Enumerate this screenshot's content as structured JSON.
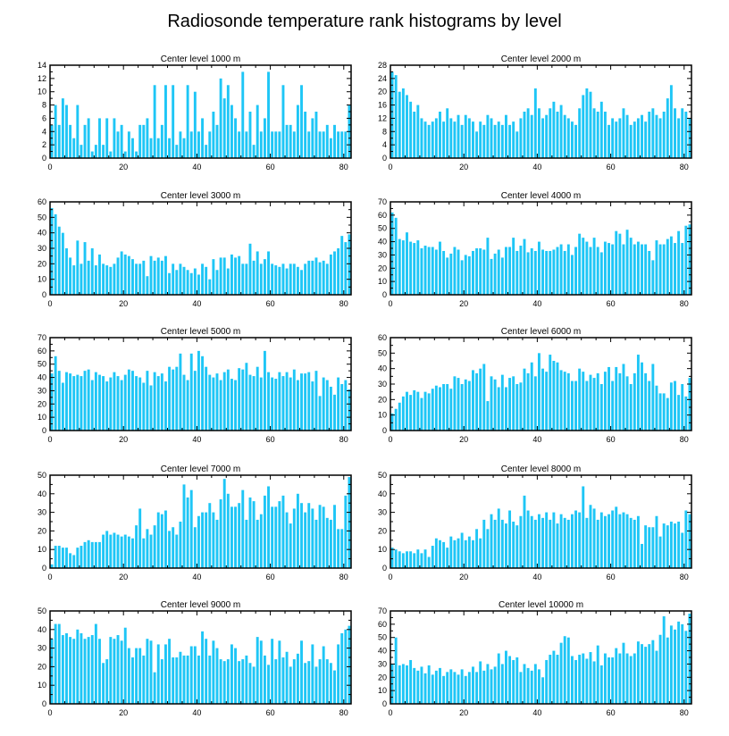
{
  "title": "Radiosonde temperature rank histograms by level",
  "colors": {
    "bar": "#1ec6f6",
    "axis": "#000000"
  },
  "chart_data": [
    {
      "type": "bar",
      "title": "Center level 1000 m",
      "xlim": [
        0,
        82
      ],
      "ylim": [
        0,
        14
      ],
      "xticks": [
        0,
        20,
        40,
        60,
        80
      ],
      "yticks": [
        0,
        2,
        4,
        6,
        8,
        10,
        12,
        14
      ],
      "values": [
        5,
        8,
        5,
        9,
        8,
        5,
        3,
        8,
        2,
        5,
        6,
        1,
        2,
        6,
        2,
        6,
        1,
        6,
        4,
        5,
        1,
        4,
        3,
        1,
        5,
        5,
        6,
        3,
        11,
        3,
        5,
        11,
        3,
        11,
        2,
        4,
        3,
        11,
        4,
        10,
        4,
        6,
        2,
        4,
        7,
        5,
        12,
        9,
        11,
        8,
        6,
        4,
        13,
        4,
        7,
        2,
        8,
        4,
        6,
        13,
        4,
        4,
        4,
        11,
        5,
        5,
        4,
        8,
        11,
        7,
        4,
        6,
        7,
        4,
        4,
        5,
        3,
        5,
        4,
        4,
        4,
        8
      ]
    },
    {
      "type": "bar",
      "title": "Center level 2000 m",
      "xlim": [
        0,
        82
      ],
      "ylim": [
        0,
        28
      ],
      "xticks": [
        0,
        20,
        40,
        60,
        80
      ],
      "yticks": [
        0,
        4,
        8,
        12,
        16,
        20,
        24,
        28
      ],
      "values": [
        26,
        25,
        20,
        21,
        19,
        17,
        14,
        16,
        12,
        11,
        10,
        11,
        12,
        14,
        11,
        15,
        12,
        11,
        13,
        10,
        13,
        12,
        11,
        8,
        11,
        10,
        13,
        12,
        10,
        11,
        10,
        13,
        10,
        11,
        8,
        12,
        14,
        15,
        13,
        21,
        15,
        12,
        13,
        15,
        17,
        14,
        16,
        13,
        12,
        11,
        10,
        15,
        19,
        21,
        20,
        15,
        14,
        17,
        14,
        10,
        12,
        11,
        12,
        15,
        13,
        10,
        11,
        12,
        13,
        11,
        14,
        15,
        13,
        12,
        14,
        18,
        22,
        15,
        12,
        15,
        14,
        12
      ]
    },
    {
      "type": "bar",
      "title": "Center level 3000 m",
      "xlim": [
        0,
        82
      ],
      "ylim": [
        0,
        60
      ],
      "xticks": [
        0,
        20,
        40,
        60,
        80
      ],
      "yticks": [
        0,
        10,
        20,
        30,
        40,
        50,
        60
      ],
      "values": [
        56,
        52,
        44,
        40,
        30,
        24,
        19,
        35,
        20,
        34,
        22,
        30,
        19,
        26,
        20,
        19,
        18,
        20,
        24,
        28,
        26,
        25,
        23,
        20,
        20,
        22,
        12,
        25,
        22,
        24,
        22,
        25,
        14,
        20,
        16,
        20,
        18,
        16,
        14,
        17,
        13,
        20,
        18,
        10,
        23,
        16,
        24,
        24,
        17,
        26,
        24,
        25,
        20,
        20,
        33,
        22,
        28,
        20,
        23,
        28,
        20,
        19,
        18,
        20,
        17,
        20,
        20,
        18,
        16,
        20,
        22,
        22,
        24,
        21,
        22,
        20,
        26,
        28,
        30,
        38,
        34,
        39
      ]
    },
    {
      "type": "bar",
      "title": "Center level 4000 m",
      "xlim": [
        0,
        82
      ],
      "ylim": [
        0,
        70
      ],
      "xticks": [
        0,
        20,
        40,
        60,
        80
      ],
      "yticks": [
        0,
        10,
        20,
        30,
        40,
        50,
        60,
        70
      ],
      "values": [
        62,
        58,
        42,
        41,
        47,
        40,
        39,
        41,
        35,
        37,
        36,
        36,
        34,
        40,
        33,
        28,
        31,
        36,
        34,
        26,
        30,
        29,
        33,
        35,
        35,
        34,
        43,
        27,
        31,
        34,
        28,
        36,
        36,
        43,
        33,
        37,
        42,
        32,
        35,
        33,
        40,
        34,
        33,
        33,
        34,
        36,
        38,
        33,
        38,
        30,
        36,
        46,
        43,
        40,
        36,
        43,
        36,
        32,
        40,
        39,
        38,
        48,
        46,
        38,
        49,
        43,
        38,
        40,
        38,
        38,
        33,
        26,
        41,
        38,
        38,
        42,
        44,
        39,
        48,
        39,
        52,
        53
      ]
    },
    {
      "type": "bar",
      "title": "Center level 5000 m",
      "xlim": [
        0,
        82
      ],
      "ylim": [
        0,
        70
      ],
      "xticks": [
        0,
        20,
        40,
        60,
        80
      ],
      "yticks": [
        0,
        10,
        20,
        30,
        40,
        50,
        60,
        70
      ],
      "values": [
        43,
        56,
        45,
        36,
        44,
        43,
        41,
        42,
        41,
        45,
        46,
        38,
        44,
        42,
        41,
        37,
        40,
        44,
        41,
        38,
        42,
        46,
        45,
        41,
        40,
        36,
        45,
        34,
        44,
        41,
        43,
        37,
        48,
        46,
        48,
        58,
        42,
        38,
        58,
        45,
        60,
        56,
        48,
        42,
        40,
        43,
        38,
        44,
        46,
        39,
        38,
        47,
        46,
        51,
        42,
        41,
        48,
        40,
        60,
        44,
        40,
        39,
        44,
        41,
        44,
        40,
        46,
        38,
        43,
        43,
        44,
        37,
        45,
        26,
        40,
        38,
        33,
        27,
        40,
        35,
        38,
        31
      ]
    },
    {
      "type": "bar",
      "title": "Center level 6000 m",
      "xlim": [
        0,
        82
      ],
      "ylim": [
        0,
        60
      ],
      "xticks": [
        0,
        20,
        40,
        60,
        80
      ],
      "yticks": [
        0,
        10,
        20,
        30,
        40,
        50,
        60
      ],
      "values": [
        11,
        14,
        18,
        22,
        25,
        23,
        26,
        25,
        21,
        25,
        24,
        27,
        29,
        28,
        30,
        30,
        27,
        35,
        34,
        30,
        33,
        32,
        39,
        37,
        40,
        43,
        19,
        35,
        33,
        28,
        36,
        28,
        34,
        35,
        30,
        31,
        40,
        37,
        44,
        35,
        50,
        40,
        38,
        49,
        45,
        44,
        39,
        38,
        37,
        32,
        32,
        40,
        38,
        32,
        36,
        34,
        37,
        30,
        38,
        41,
        32,
        41,
        37,
        43,
        35,
        30,
        37,
        49,
        44,
        37,
        32,
        43,
        29,
        24,
        24,
        21,
        31,
        32,
        23,
        30,
        22,
        34
      ]
    },
    {
      "type": "bar",
      "title": "Center level 7000 m",
      "xlim": [
        0,
        82
      ],
      "ylim": [
        0,
        50
      ],
      "xticks": [
        0,
        20,
        40,
        60,
        80
      ],
      "yticks": [
        0,
        10,
        20,
        30,
        40,
        50
      ],
      "values": [
        2,
        12,
        12,
        11,
        11,
        8,
        7,
        11,
        12,
        14,
        15,
        14,
        14,
        14,
        18,
        20,
        18,
        19,
        18,
        17,
        18,
        17,
        16,
        23,
        32,
        16,
        21,
        18,
        23,
        30,
        29,
        31,
        20,
        22,
        18,
        25,
        45,
        38,
        42,
        22,
        28,
        30,
        30,
        35,
        30,
        26,
        37,
        48,
        40,
        33,
        33,
        35,
        42,
        26,
        38,
        36,
        26,
        29,
        39,
        44,
        33,
        33,
        36,
        39,
        30,
        24,
        32,
        40,
        35,
        30,
        35,
        32,
        26,
        34,
        33,
        27,
        26,
        34,
        21,
        21,
        39,
        49
      ]
    },
    {
      "type": "bar",
      "title": "Center level 8000 m",
      "xlim": [
        0,
        82
      ],
      "ylim": [
        0,
        50
      ],
      "xticks": [
        0,
        20,
        40,
        60,
        80
      ],
      "yticks": [
        0,
        10,
        20,
        30,
        40,
        50
      ],
      "values": [
        11,
        10,
        9,
        8,
        9,
        9,
        8,
        10,
        8,
        10,
        6,
        12,
        16,
        15,
        14,
        11,
        17,
        15,
        16,
        19,
        15,
        17,
        15,
        21,
        16,
        26,
        21,
        29,
        26,
        32,
        26,
        24,
        31,
        25,
        23,
        28,
        39,
        31,
        28,
        26,
        29,
        27,
        30,
        26,
        30,
        24,
        29,
        27,
        26,
        29,
        31,
        30,
        44,
        27,
        34,
        32,
        26,
        30,
        28,
        29,
        31,
        33,
        29,
        30,
        29,
        27,
        26,
        28,
        13,
        23,
        22,
        22,
        28,
        17,
        24,
        23,
        25,
        24,
        25,
        19,
        31,
        29
      ]
    },
    {
      "type": "bar",
      "title": "Center level 9000 m",
      "xlim": [
        0,
        82
      ],
      "ylim": [
        0,
        50
      ],
      "xticks": [
        0,
        20,
        40,
        60,
        80
      ],
      "yticks": [
        0,
        10,
        20,
        30,
        40,
        50
      ],
      "values": [
        35,
        43,
        43,
        37,
        38,
        36,
        35,
        40,
        38,
        35,
        36,
        37,
        43,
        35,
        22,
        24,
        36,
        35,
        37,
        34,
        41,
        30,
        25,
        30,
        30,
        26,
        35,
        34,
        17,
        32,
        24,
        32,
        35,
        25,
        25,
        28,
        26,
        26,
        31,
        31,
        26,
        39,
        35,
        26,
        34,
        30,
        24,
        23,
        24,
        32,
        30,
        23,
        24,
        26,
        22,
        20,
        36,
        34,
        26,
        21,
        35,
        24,
        34,
        25,
        28,
        20,
        24,
        27,
        34,
        22,
        23,
        32,
        20,
        24,
        31,
        24,
        22,
        18,
        32,
        38,
        40,
        42
      ]
    },
    {
      "type": "bar",
      "title": "Center level 10000 m",
      "xlim": [
        0,
        82
      ],
      "ylim": [
        0,
        70
      ],
      "xticks": [
        0,
        20,
        40,
        60,
        80
      ],
      "yticks": [
        0,
        10,
        20,
        30,
        40,
        50,
        60,
        70
      ],
      "values": [
        30,
        50,
        29,
        30,
        29,
        33,
        27,
        25,
        28,
        23,
        29,
        22,
        25,
        27,
        21,
        24,
        26,
        24,
        22,
        26,
        21,
        24,
        28,
        24,
        32,
        25,
        30,
        26,
        28,
        38,
        30,
        40,
        36,
        33,
        35,
        24,
        30,
        27,
        25,
        30,
        26,
        20,
        33,
        37,
        40,
        37,
        46,
        51,
        50,
        36,
        33,
        37,
        38,
        34,
        39,
        32,
        44,
        29,
        38,
        35,
        35,
        42,
        38,
        46,
        38,
        36,
        38,
        47,
        45,
        43,
        45,
        48,
        40,
        52,
        66,
        50,
        59,
        56,
        62,
        60,
        55,
        68
      ]
    }
  ]
}
